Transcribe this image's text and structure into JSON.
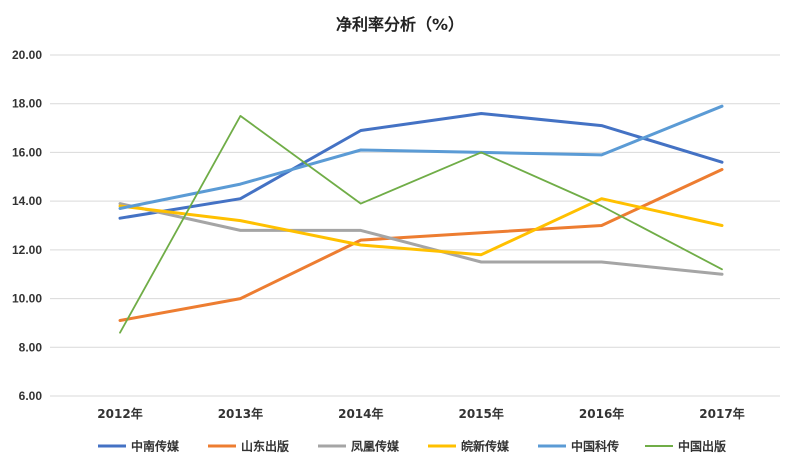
{
  "chart_data": {
    "type": "line",
    "title": "净利率分析（%）",
    "categories": [
      "2012年",
      "2013年",
      "2014年",
      "2015年",
      "2016年",
      "2017年"
    ],
    "ylim": [
      6.0,
      20.0
    ],
    "yticks": [
      "6.00",
      "8.00",
      "10.00",
      "12.00",
      "14.00",
      "16.00",
      "18.00",
      "20.00"
    ],
    "ytick_values": [
      6,
      8,
      10,
      12,
      14,
      16,
      18,
      20
    ],
    "grid": true,
    "legend_position": "bottom",
    "series": [
      {
        "name": "中南传媒",
        "color": "#4472C4",
        "values": [
          13.3,
          14.1,
          16.9,
          17.6,
          17.1,
          15.6
        ]
      },
      {
        "name": "山东出版",
        "color": "#ED7D31",
        "values": [
          9.1,
          10.0,
          12.4,
          12.7,
          13.0,
          15.3
        ]
      },
      {
        "name": "凤凰传媒",
        "color": "#A5A5A5",
        "values": [
          13.9,
          12.8,
          12.8,
          11.5,
          11.5,
          11.0
        ]
      },
      {
        "name": "皖新传媒",
        "color": "#FFC000",
        "values": [
          13.8,
          13.2,
          12.2,
          11.8,
          14.1,
          13.0
        ]
      },
      {
        "name": "中国科传",
        "color": "#5B9BD5",
        "values": [
          13.7,
          14.7,
          16.1,
          16.0,
          15.9,
          17.9
        ]
      },
      {
        "name": "中国出版",
        "color": "#70AD47",
        "values": [
          8.6,
          17.5,
          13.9,
          16.0,
          13.8,
          11.2
        ]
      }
    ]
  }
}
